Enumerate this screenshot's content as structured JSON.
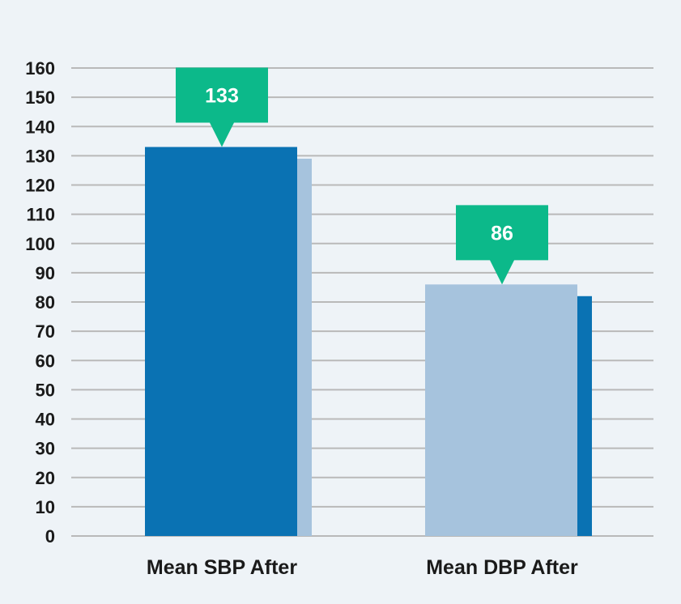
{
  "chart_data": {
    "type": "bar",
    "title": "",
    "xlabel": "",
    "ylabel": "",
    "categories": [
      "Mean SBP After",
      "Mean DBP After"
    ],
    "values": [
      133,
      86
    ],
    "back_values": [
      129,
      82
    ],
    "callout_labels": [
      "133",
      "86"
    ],
    "ylim": [
      0,
      160
    ],
    "yticks": [
      0,
      10,
      20,
      30,
      40,
      50,
      60,
      70,
      80,
      90,
      100,
      110,
      120,
      130,
      140,
      150,
      160
    ],
    "grid": true,
    "colors": {
      "front": [
        "#0a72b3",
        "#a6c3dd"
      ],
      "back": [
        "#a6c3dd",
        "#0a72b3"
      ],
      "callout": "#0cb98a",
      "gridline": "#b9b9b9",
      "background": "#eef3f7"
    }
  }
}
